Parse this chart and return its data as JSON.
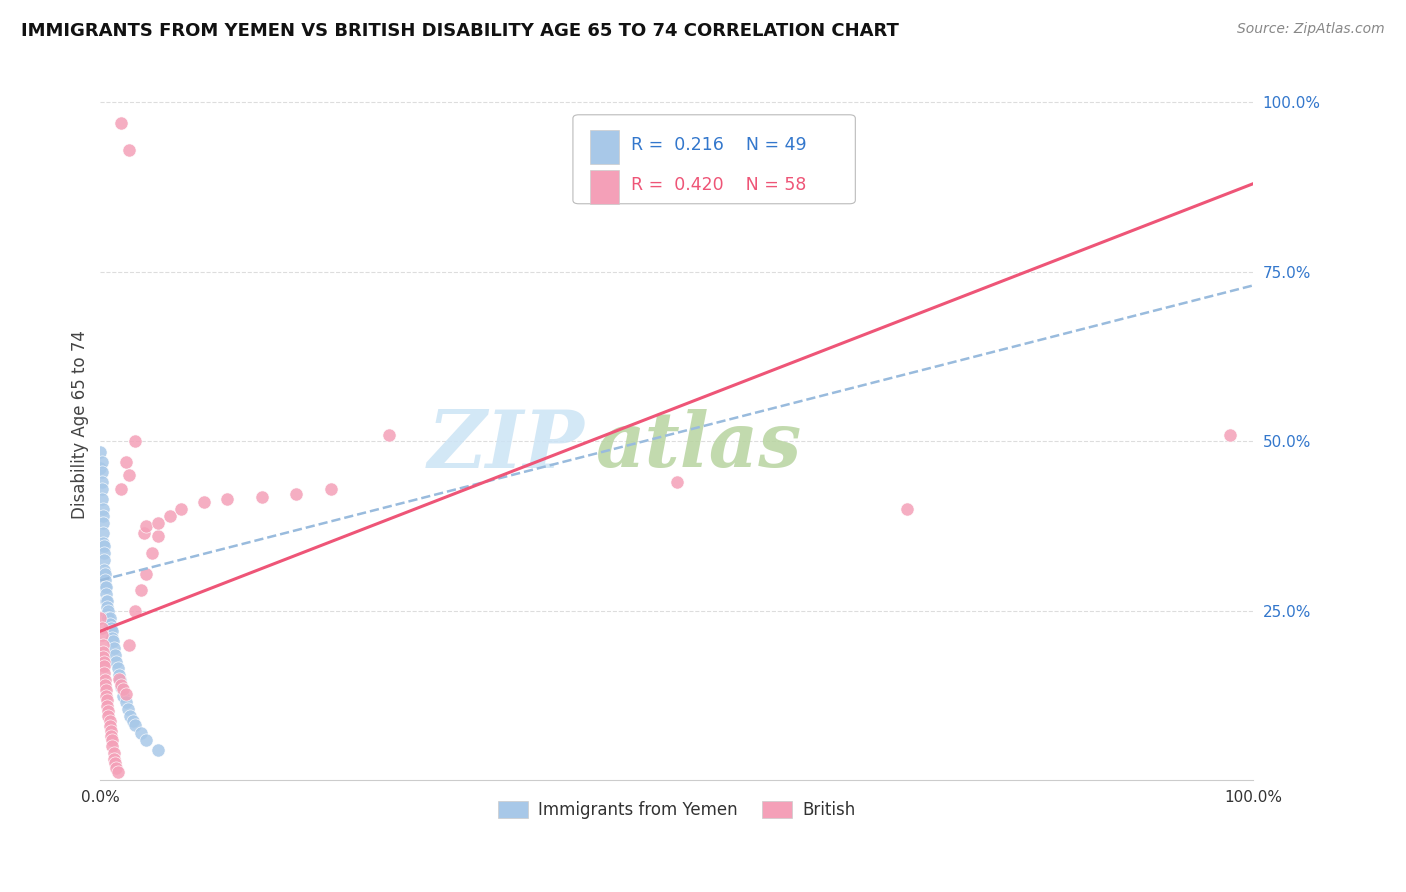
{
  "title": "IMMIGRANTS FROM YEMEN VS BRITISH DISABILITY AGE 65 TO 74 CORRELATION CHART",
  "source": "Source: ZipAtlas.com",
  "ylabel": "Disability Age 65 to 74",
  "legend_label1": "Immigrants from Yemen",
  "legend_label2": "British",
  "r1": "0.216",
  "n1": "49",
  "r2": "0.420",
  "n2": "58",
  "color_blue": "#a8c8e8",
  "color_pink": "#f4a0b8",
  "color_blue_text": "#3377cc",
  "color_pink_text": "#ee5577",
  "watermark_zip_color": "#cce4f5",
  "watermark_atlas_color": "#b8d4a0",
  "xmin": 0.0,
  "xmax": 1.0,
  "ymin": 0.0,
  "ymax": 1.05,
  "blue_x": [
    0.0,
    0.0,
    0.001,
    0.001,
    0.001,
    0.001,
    0.001,
    0.002,
    0.002,
    0.002,
    0.002,
    0.002,
    0.003,
    0.003,
    0.003,
    0.003,
    0.004,
    0.004,
    0.004,
    0.005,
    0.005,
    0.005,
    0.006,
    0.006,
    0.006,
    0.007,
    0.007,
    0.008,
    0.008,
    0.009,
    0.01,
    0.01,
    0.011,
    0.012,
    0.013,
    0.014,
    0.015,
    0.016,
    0.017,
    0.018,
    0.02,
    0.022,
    0.024,
    0.026,
    0.028,
    0.03,
    0.035,
    0.04,
    0.05
  ],
  "blue_y": [
    0.485,
    0.46,
    0.47,
    0.455,
    0.44,
    0.43,
    0.415,
    0.4,
    0.39,
    0.38,
    0.365,
    0.35,
    0.345,
    0.335,
    0.325,
    0.31,
    0.305,
    0.295,
    0.285,
    0.285,
    0.275,
    0.265,
    0.265,
    0.255,
    0.245,
    0.25,
    0.24,
    0.24,
    0.23,
    0.225,
    0.22,
    0.21,
    0.205,
    0.195,
    0.185,
    0.175,
    0.165,
    0.155,
    0.148,
    0.138,
    0.125,
    0.115,
    0.105,
    0.095,
    0.088,
    0.082,
    0.07,
    0.06,
    0.045
  ],
  "pink_x": [
    0.0,
    0.001,
    0.001,
    0.002,
    0.002,
    0.002,
    0.003,
    0.003,
    0.003,
    0.004,
    0.004,
    0.005,
    0.005,
    0.006,
    0.006,
    0.007,
    0.007,
    0.008,
    0.008,
    0.009,
    0.009,
    0.01,
    0.01,
    0.012,
    0.012,
    0.013,
    0.014,
    0.015,
    0.016,
    0.018,
    0.02,
    0.022,
    0.025,
    0.03,
    0.035,
    0.04,
    0.045,
    0.05,
    0.018,
    0.022,
    0.025,
    0.03,
    0.018,
    0.025,
    0.25,
    0.5,
    0.7,
    0.98,
    0.038,
    0.04,
    0.05,
    0.06,
    0.07,
    0.09,
    0.11,
    0.14,
    0.17,
    0.2
  ],
  "pink_y": [
    0.24,
    0.225,
    0.215,
    0.2,
    0.19,
    0.182,
    0.175,
    0.168,
    0.158,
    0.148,
    0.14,
    0.133,
    0.125,
    0.118,
    0.11,
    0.102,
    0.095,
    0.088,
    0.08,
    0.073,
    0.065,
    0.06,
    0.05,
    0.04,
    0.032,
    0.025,
    0.018,
    0.012,
    0.15,
    0.14,
    0.135,
    0.128,
    0.2,
    0.25,
    0.28,
    0.305,
    0.335,
    0.36,
    0.43,
    0.47,
    0.45,
    0.5,
    0.97,
    0.93,
    0.51,
    0.44,
    0.4,
    0.51,
    0.365,
    0.375,
    0.38,
    0.39,
    0.4,
    0.41,
    0.415,
    0.418,
    0.422,
    0.43
  ],
  "trendline_blue_x0": 0.0,
  "trendline_blue_x1": 1.0,
  "trendline_blue_y0": 0.295,
  "trendline_blue_y1": 0.73,
  "trendline_pink_x0": 0.0,
  "trendline_pink_x1": 1.0,
  "trendline_pink_y0": 0.22,
  "trendline_pink_y1": 0.88
}
